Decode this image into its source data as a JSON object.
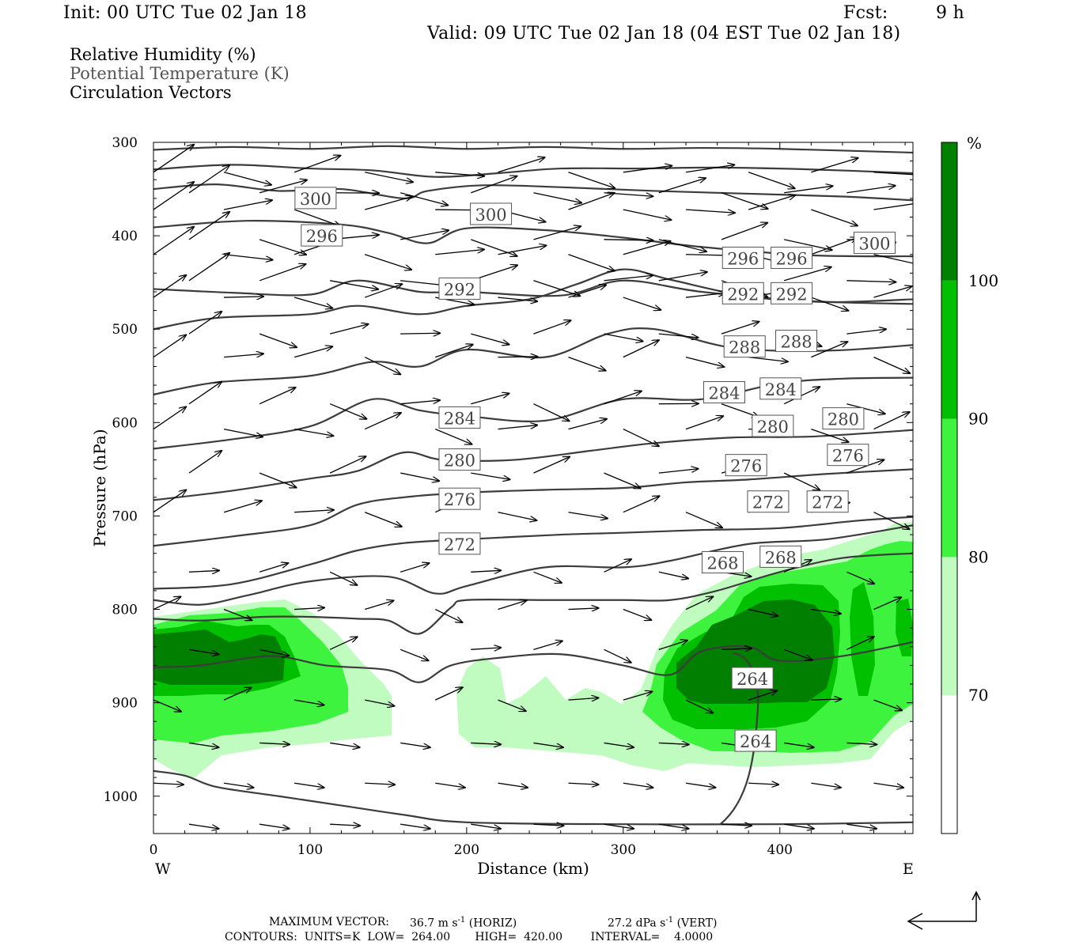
{
  "header": {
    "init": "Init: 00 UTC Tue 02 Jan 18",
    "fcst_label": "Fcst:",
    "fcst_value": "9 h",
    "valid": "Valid: 09 UTC Tue 02 Jan 18 (04 EST Tue 02 Jan 18)"
  },
  "legend": {
    "line1": "Relative Humidity (%)",
    "line2": "Potential Temperature (K)",
    "line3": "Circulation Vectors"
  },
  "colors": {
    "rh_70_80": "#c0fbc0",
    "rh_80_90": "#3ef33e",
    "rh_90_100": "#00c000",
    "rh_100": "#007f00",
    "contour": "#3c3c3c",
    "legend_gray": "#555555"
  },
  "chart_data": {
    "type": "cross-section",
    "xlabel": "Distance (km)",
    "ylabel": "Pressure (hPa)",
    "xlim": [
      0,
      485
    ],
    "ylim": [
      1040,
      300
    ],
    "x_ticks": [
      0,
      100,
      200,
      300,
      400
    ],
    "y_ticks": [
      300,
      400,
      500,
      600,
      700,
      800,
      900,
      1000
    ],
    "x_left_label": "W",
    "x_right_label": "E",
    "colorbar": {
      "unit": "%",
      "levels": [
        70,
        80,
        90,
        100
      ],
      "level_labels": [
        "70",
        "80",
        "90",
        "100"
      ],
      "colors": [
        "#ffffff",
        "#c0fbc0",
        "#3ef33e",
        "#00c000",
        "#007f00"
      ]
    },
    "theta_contours": [
      {
        "level": 304,
        "points": [
          [
            0,
            308
          ],
          [
            50,
            305
          ],
          [
            100,
            307
          ],
          [
            150,
            304
          ],
          [
            200,
            307
          ],
          [
            250,
            305
          ],
          [
            300,
            307
          ],
          [
            350,
            306
          ],
          [
            400,
            307
          ],
          [
            485,
            311
          ]
        ]
      },
      {
        "level": 300,
        "points": [
          [
            0,
            329
          ],
          [
            50,
            324
          ],
          [
            100,
            328
          ],
          [
            140,
            330
          ],
          [
            180,
            337
          ],
          [
            220,
            333
          ],
          [
            260,
            328
          ],
          [
            310,
            328
          ],
          [
            360,
            327
          ],
          [
            420,
            329
          ],
          [
            485,
            333
          ]
        ]
      },
      {
        "level": 300,
        "points": [
          [
            0,
            350
          ],
          [
            40,
            345
          ],
          [
            80,
            352
          ],
          [
            120,
            350
          ],
          [
            160,
            360
          ],
          [
            175,
            352
          ],
          [
            210,
            346
          ],
          [
            260,
            348
          ],
          [
            320,
            352
          ],
          [
            380,
            355
          ],
          [
            440,
            358
          ],
          [
            485,
            362
          ]
        ]
      },
      {
        "level": 296,
        "points": [
          [
            0,
            391
          ],
          [
            60,
            384
          ],
          [
            120,
            388
          ],
          [
            150,
            397
          ],
          [
            175,
            408
          ],
          [
            200,
            392
          ],
          [
            250,
            394
          ],
          [
            300,
            402
          ],
          [
            350,
            412
          ],
          [
            420,
            421
          ],
          [
            485,
            422
          ]
        ]
      },
      {
        "level": 296,
        "points": [
          [
            0,
            457
          ],
          [
            50,
            461
          ],
          [
            100,
            463
          ],
          [
            130,
            448
          ],
          [
            170,
            460
          ],
          [
            200,
            460
          ],
          [
            260,
            464
          ],
          [
            300,
            448
          ],
          [
            350,
            460
          ],
          [
            420,
            470
          ],
          [
            485,
            473
          ]
        ]
      },
      {
        "level": 292,
        "points": [
          [
            0,
            500
          ],
          [
            40,
            488
          ],
          [
            100,
            484
          ],
          [
            130,
            475
          ],
          [
            170,
            484
          ],
          [
            200,
            475
          ],
          [
            240,
            468
          ],
          [
            270,
            452
          ],
          [
            300,
            436
          ],
          [
            330,
            447
          ],
          [
            380,
            465
          ],
          [
            430,
            471
          ],
          [
            485,
            468
          ]
        ]
      },
      {
        "level": 288,
        "points": [
          [
            0,
            570
          ],
          [
            40,
            557
          ],
          [
            100,
            550
          ],
          [
            140,
            535
          ],
          [
            170,
            540
          ],
          [
            200,
            522
          ],
          [
            250,
            530
          ],
          [
            290,
            505
          ],
          [
            320,
            500
          ],
          [
            370,
            520
          ],
          [
            430,
            523
          ],
          [
            485,
            517
          ]
        ]
      },
      {
        "level": 284,
        "points": [
          [
            0,
            628
          ],
          [
            50,
            618
          ],
          [
            100,
            604
          ],
          [
            140,
            575
          ],
          [
            170,
            587
          ],
          [
            200,
            593
          ],
          [
            250,
            598
          ],
          [
            300,
            575
          ],
          [
            350,
            575
          ],
          [
            400,
            558
          ],
          [
            440,
            553
          ],
          [
            485,
            552
          ]
        ]
      },
      {
        "level": 280,
        "points": [
          [
            0,
            683
          ],
          [
            50,
            673
          ],
          [
            100,
            660
          ],
          [
            130,
            652
          ],
          [
            160,
            632
          ],
          [
            185,
            640
          ],
          [
            230,
            640
          ],
          [
            280,
            630
          ],
          [
            320,
            622
          ],
          [
            370,
            616
          ],
          [
            420,
            615
          ],
          [
            485,
            608
          ]
        ]
      },
      {
        "level": 276,
        "points": [
          [
            0,
            732
          ],
          [
            50,
            722
          ],
          [
            100,
            710
          ],
          [
            130,
            688
          ],
          [
            160,
            680
          ],
          [
            200,
            675
          ],
          [
            250,
            672
          ],
          [
            300,
            670
          ],
          [
            340,
            664
          ],
          [
            380,
            661
          ],
          [
            430,
            655
          ],
          [
            485,
            650
          ]
        ]
      },
      {
        "level": 272,
        "points": [
          [
            0,
            778
          ],
          [
            50,
            773
          ],
          [
            100,
            752
          ],
          [
            130,
            737
          ],
          [
            160,
            729
          ],
          [
            200,
            725
          ],
          [
            260,
            720
          ],
          [
            300,
            718
          ],
          [
            350,
            715
          ],
          [
            400,
            713
          ],
          [
            450,
            705
          ],
          [
            485,
            701
          ]
        ]
      },
      {
        "level": 268,
        "points": [
          [
            0,
            790
          ],
          [
            30,
            795
          ],
          [
            60,
            785
          ],
          [
            100,
            770
          ],
          [
            150,
            765
          ],
          [
            180,
            783
          ],
          [
            200,
            775
          ],
          [
            250,
            755
          ],
          [
            300,
            755
          ],
          [
            330,
            748
          ],
          [
            380,
            730
          ],
          [
            430,
            725
          ],
          [
            485,
            710
          ]
        ]
      },
      {
        "level": 264,
        "points": [
          [
            0,
            810
          ],
          [
            30,
            812
          ],
          [
            70,
            808
          ],
          [
            100,
            808
          ],
          [
            130,
            810
          ],
          [
            150,
            812
          ],
          [
            170,
            826
          ],
          [
            190,
            798
          ],
          [
            200,
            790
          ],
          [
            250,
            790
          ],
          [
            300,
            790
          ],
          [
            330,
            790
          ],
          [
            360,
            780
          ],
          [
            400,
            760
          ],
          [
            440,
            745
          ],
          [
            485,
            740
          ]
        ]
      },
      {
        "level": 264,
        "points": [
          [
            0,
            862
          ],
          [
            30,
            860
          ],
          [
            75,
            850
          ],
          [
            110,
            860
          ],
          [
            150,
            865
          ],
          [
            170,
            878
          ],
          [
            190,
            860
          ],
          [
            220,
            852
          ],
          [
            260,
            848
          ],
          [
            300,
            860
          ],
          [
            330,
            870
          ],
          [
            350,
            845
          ],
          [
            380,
            840
          ],
          [
            400,
            855
          ],
          [
            440,
            850
          ],
          [
            485,
            835
          ]
        ]
      },
      {
        "level": 264,
        "points": [
          [
            0,
            973
          ],
          [
            20,
            978
          ],
          [
            40,
            990
          ],
          [
            80,
            1000
          ],
          [
            120,
            1010
          ],
          [
            160,
            1020
          ],
          [
            200,
            1028
          ],
          [
            300,
            1030
          ],
          [
            400,
            1030
          ],
          [
            485,
            1028
          ]
        ]
      }
    ],
    "theta_labels": [
      {
        "text": "300",
        "x": 103,
        "y": 360
      },
      {
        "text": "300",
        "x": 215,
        "y": 377
      },
      {
        "text": "300",
        "x": 460,
        "y": 408
      },
      {
        "text": "296",
        "x": 107,
        "y": 400
      },
      {
        "text": "296",
        "x": 376,
        "y": 424
      },
      {
        "text": "296",
        "x": 407,
        "y": 424
      },
      {
        "text": "292",
        "x": 195,
        "y": 457
      },
      {
        "text": "292",
        "x": 376,
        "y": 462
      },
      {
        "text": "292",
        "x": 407,
        "y": 462
      },
      {
        "text": "288",
        "x": 377,
        "y": 519
      },
      {
        "text": "288",
        "x": 410,
        "y": 513
      },
      {
        "text": "284",
        "x": 364,
        "y": 568
      },
      {
        "text": "284",
        "x": 400,
        "y": 564
      },
      {
        "text": "284",
        "x": 195,
        "y": 595
      },
      {
        "text": "280",
        "x": 195,
        "y": 640
      },
      {
        "text": "280",
        "x": 395,
        "y": 604
      },
      {
        "text": "280",
        "x": 440,
        "y": 596
      },
      {
        "text": "276",
        "x": 195,
        "y": 682
      },
      {
        "text": "276",
        "x": 378,
        "y": 646
      },
      {
        "text": "276",
        "x": 443,
        "y": 635
      },
      {
        "text": "272",
        "x": 195,
        "y": 730
      },
      {
        "text": "272",
        "x": 392,
        "y": 685
      },
      {
        "text": "272",
        "x": 430,
        "y": 685
      },
      {
        "text": "268",
        "x": 363,
        "y": 750
      },
      {
        "text": "268",
        "x": 400,
        "y": 744
      },
      {
        "text": "264",
        "x": 382,
        "y": 874
      },
      {
        "text": "264",
        "x": 384,
        "y": 941
      }
    ],
    "vector_rows_p": [
      332,
      354,
      372,
      404,
      420,
      448,
      466,
      505,
      530,
      580,
      607,
      654,
      696,
      760,
      800,
      843,
      897,
      943,
      986,
      1030
    ],
    "vector_cols_x": [
      0,
      45,
      90,
      135,
      180,
      220,
      265,
      300,
      340,
      380,
      420,
      460
    ],
    "vector_scale": {
      "horiz_max": 36.7,
      "vert_max": 27.2
    }
  },
  "footer": {
    "max_vector_label": "MAXIMUM VECTOR:",
    "horiz_value": "36.7 m s",
    "horiz_unit": "(HORIZ)",
    "vert_value": "27.2 dPa s",
    "vert_unit": "(VERT)",
    "exp": "-1",
    "contours": "CONTOURS:  UNITS=K  LOW=  264.00       HIGH=  420.00        INTERVAL=    4.0000"
  }
}
